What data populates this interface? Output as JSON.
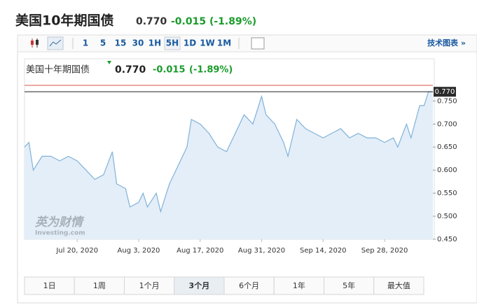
{
  "header": {
    "title": "美国10年期国债",
    "price": "0.770",
    "change": "-0.015 (-1.89%)"
  },
  "toolbar": {
    "intervals": [
      "1",
      "5",
      "15",
      "30",
      "1H",
      "5H",
      "1D",
      "1W",
      "1M"
    ],
    "selected_interval": "5H",
    "tech_chart": "技术图表 »"
  },
  "chart_data": {
    "type": "line",
    "title": "美国十年期国债",
    "price": "0.770",
    "change": "-0.015",
    "change_pct": "(-1.89%)",
    "watermark": "英为财情",
    "watermark_sub": "Investing.com",
    "x": [
      "2020-07-08",
      "2020-07-09",
      "2020-07-10",
      "2020-07-12",
      "2020-07-14",
      "2020-07-16",
      "2020-07-18",
      "2020-07-20",
      "2020-07-22",
      "2020-07-24",
      "2020-07-26",
      "2020-07-28",
      "2020-07-29",
      "2020-07-31",
      "2020-08-01",
      "2020-08-03",
      "2020-08-04",
      "2020-08-05",
      "2020-08-07",
      "2020-08-08",
      "2020-08-10",
      "2020-08-12",
      "2020-08-14",
      "2020-08-15",
      "2020-08-17",
      "2020-08-19",
      "2020-08-21",
      "2020-08-23",
      "2020-08-25",
      "2020-08-27",
      "2020-08-29",
      "2020-08-31",
      "2020-09-01",
      "2020-09-03",
      "2020-09-05",
      "2020-09-06",
      "2020-09-08",
      "2020-09-10",
      "2020-09-12",
      "2020-09-14",
      "2020-09-16",
      "2020-09-18",
      "2020-09-20",
      "2020-09-22",
      "2020-09-24",
      "2020-09-26",
      "2020-09-28",
      "2020-09-30",
      "2020-10-01",
      "2020-10-03",
      "2020-10-04",
      "2020-10-06",
      "2020-10-07",
      "2020-10-08",
      "2020-10-09"
    ],
    "series": [
      {
        "color": "#7fb2d9",
        "fill": "#e4eef8",
        "values": [
          0.65,
          0.66,
          0.6,
          0.63,
          0.63,
          0.62,
          0.63,
          0.62,
          0.6,
          0.58,
          0.59,
          0.64,
          0.57,
          0.56,
          0.52,
          0.53,
          0.55,
          0.52,
          0.55,
          0.51,
          0.57,
          0.61,
          0.65,
          0.71,
          0.7,
          0.68,
          0.65,
          0.64,
          0.68,
          0.72,
          0.7,
          0.76,
          0.72,
          0.7,
          0.66,
          0.63,
          0.71,
          0.69,
          0.68,
          0.67,
          0.68,
          0.69,
          0.67,
          0.68,
          0.67,
          0.67,
          0.66,
          0.67,
          0.65,
          0.7,
          0.67,
          0.74,
          0.74,
          0.77,
          0.77
        ]
      }
    ],
    "last": {
      "value": 0.77,
      "label": "0.770"
    },
    "xlim": [
      "2020-07-08",
      "2020-10-09"
    ],
    "xticks": [
      {
        "value": "2020-07-20",
        "label": "Jul 20, 2020"
      },
      {
        "value": "2020-08-03",
        "label": "Aug 3, 2020"
      },
      {
        "value": "2020-08-17",
        "label": "Aug 17, 2020"
      },
      {
        "value": "2020-08-31",
        "label": "Aug 31, 2020"
      },
      {
        "value": "2020-09-14",
        "label": "Sep 14, 2020"
      },
      {
        "value": "2020-09-28",
        "label": "Sep 28, 2020"
      }
    ],
    "ylim": [
      0.45,
      0.79
    ],
    "yticks": [
      {
        "value": 0.45,
        "label": "0.450"
      },
      {
        "value": 0.5,
        "label": "0.500"
      },
      {
        "value": 0.55,
        "label": "0.550"
      },
      {
        "value": 0.6,
        "label": "0.600"
      },
      {
        "value": 0.65,
        "label": "0.650"
      },
      {
        "value": 0.7,
        "label": "0.700"
      },
      {
        "value": 0.75,
        "label": "0.750"
      }
    ]
  },
  "ranges": [
    "1日",
    "1周",
    "1个月",
    "3个月",
    "6个月",
    "1年",
    "5年",
    "最大值"
  ],
  "selected_range": "3个月"
}
